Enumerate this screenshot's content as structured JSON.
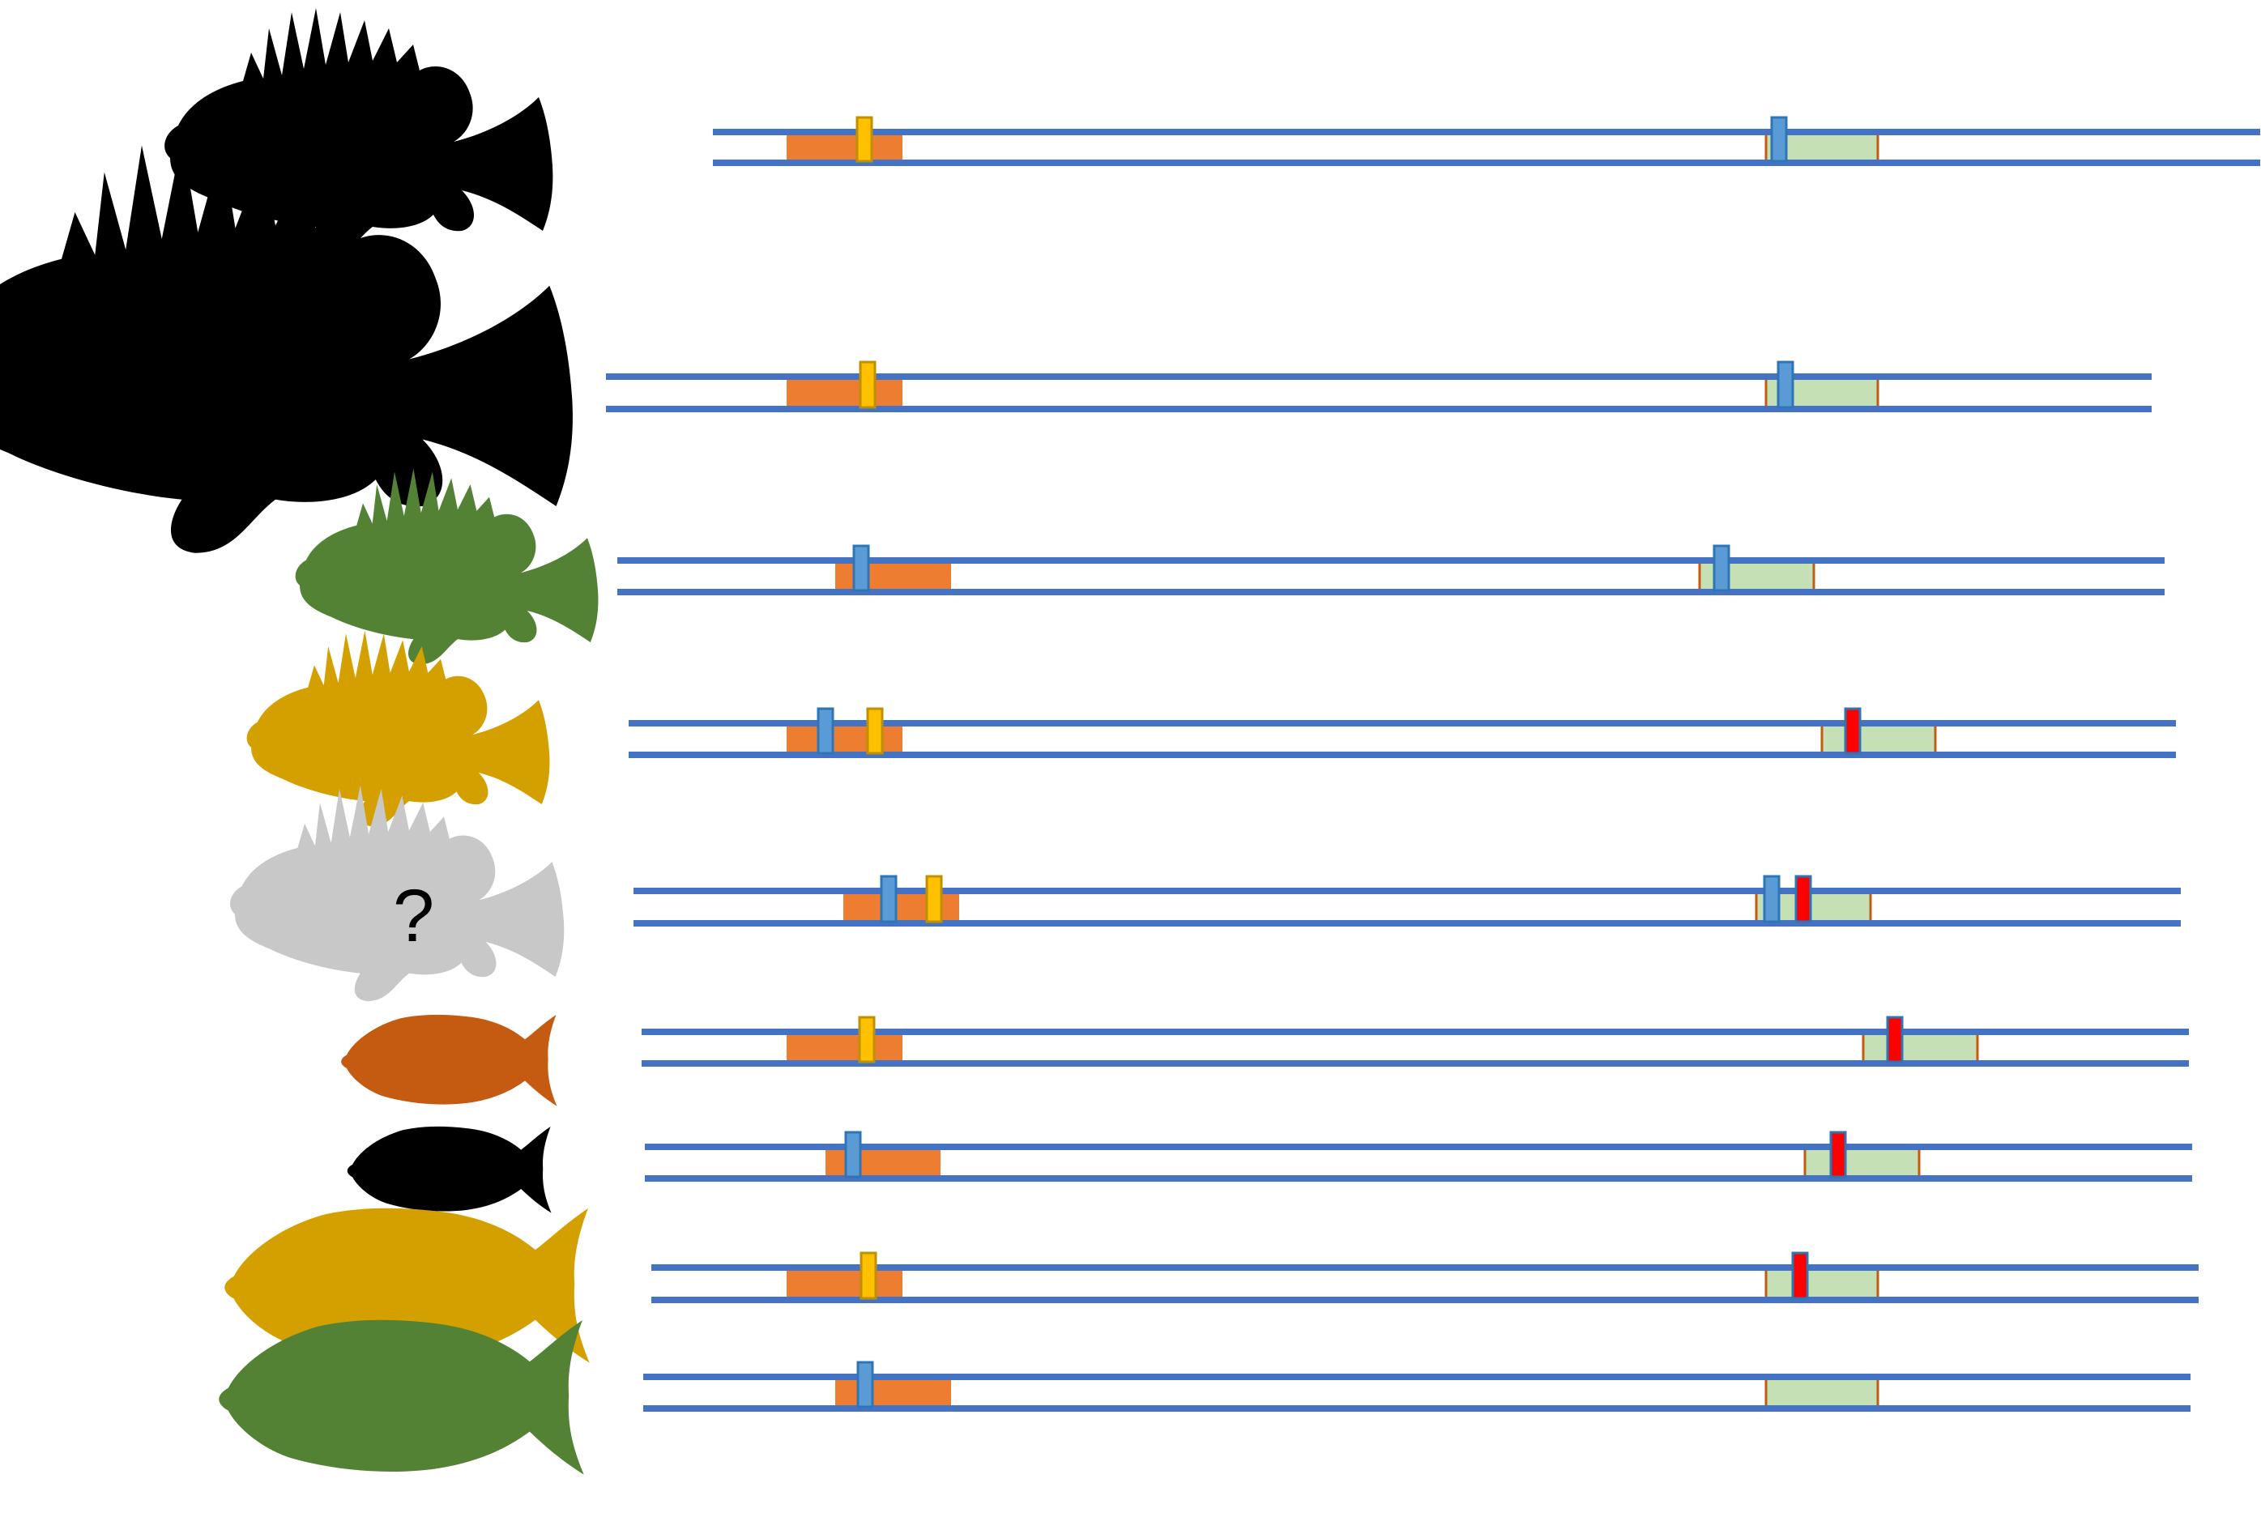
{
  "figure": {
    "colors": {
      "strand": "#4472c4",
      "orange_block": "#ed7d31",
      "green_block": "#c5e0b4",
      "green_block_border": "#c55a11",
      "blue_marker": "#5b9bd5",
      "blue_marker_border": "#2e75b6",
      "yellow_marker": "#ffc000",
      "yellow_marker_border": "#bf9000",
      "red_marker": "#ff0000",
      "red_marker_border": "#2e75b6"
    },
    "rows": [
      {
        "fish_color": "#000000",
        "fish_shape": "rockfish-silhouette",
        "fish_label": "",
        "orange_markers": [
          "yellow"
        ],
        "green_markers": [
          "blue"
        ]
      },
      {
        "fish_color": "#000000",
        "fish_shape": "rockfish-silhouette-large",
        "fish_label": "",
        "orange_markers": [
          "yellow"
        ],
        "green_markers": [
          "blue"
        ]
      },
      {
        "fish_color": "#548235",
        "fish_shape": "rockfish-silhouette",
        "fish_label": "",
        "orange_markers": [
          "blue"
        ],
        "green_markers": [
          "blue"
        ]
      },
      {
        "fish_color": "#d4a000",
        "fish_shape": "rockfish-silhouette",
        "fish_label": "",
        "orange_markers": [
          "blue",
          "yellow"
        ],
        "green_markers": [
          "red"
        ]
      },
      {
        "fish_color": "#c8c8c8",
        "fish_shape": "rockfish-silhouette",
        "fish_label": "?",
        "orange_markers": [
          "blue",
          "yellow"
        ],
        "green_markers": [
          "blue",
          "red"
        ]
      },
      {
        "fish_color": "#c55a11",
        "fish_shape": "slender-fish-silhouette",
        "fish_label": "",
        "orange_markers": [
          "yellow"
        ],
        "green_markers": [
          "red"
        ]
      },
      {
        "fish_color": "#000000",
        "fish_shape": "slender-fish-silhouette",
        "fish_label": "",
        "orange_markers": [
          "blue"
        ],
        "green_markers": [
          "red"
        ]
      },
      {
        "fish_color": "#d4a000",
        "fish_shape": "slender-fish-silhouette",
        "fish_label": "",
        "orange_markers": [
          "yellow"
        ],
        "green_markers": [
          "red"
        ]
      },
      {
        "fish_color": "#548235",
        "fish_shape": "slender-fish-silhouette",
        "fish_label": "",
        "orange_markers": [
          "blue"
        ],
        "green_markers": []
      }
    ]
  }
}
